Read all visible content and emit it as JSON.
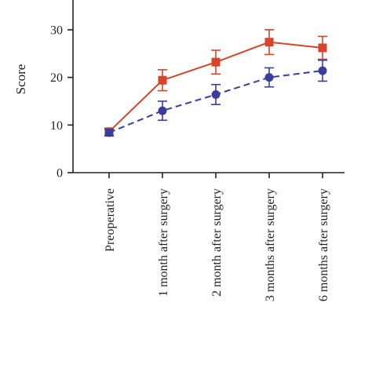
{
  "chart_data": {
    "type": "line",
    "title": "",
    "xlabel": "",
    "ylabel": "Score",
    "ylim": [
      0,
      36
    ],
    "yticks": [
      0,
      10,
      20,
      30
    ],
    "categories": [
      "Preoperative",
      "1 month after surgery",
      "2 month after surgery",
      "3 months after surgery",
      "6 months after surgery"
    ],
    "series": [
      {
        "color": "#d6452a",
        "marker": "square",
        "line_style": "solid",
        "values": [
          8.6,
          19.4,
          23.2,
          27.4,
          26.2
        ],
        "errors": [
          0.7,
          2.2,
          2.5,
          2.6,
          2.4
        ]
      },
      {
        "color": "#3a3d9c",
        "marker": "circle",
        "line_style": "dashed",
        "values": [
          8.4,
          13.0,
          16.4,
          20.0,
          21.4
        ],
        "errors": [
          0.7,
          2.0,
          2.1,
          2.0,
          2.2
        ]
      }
    ],
    "grid": false,
    "legend": "none"
  }
}
